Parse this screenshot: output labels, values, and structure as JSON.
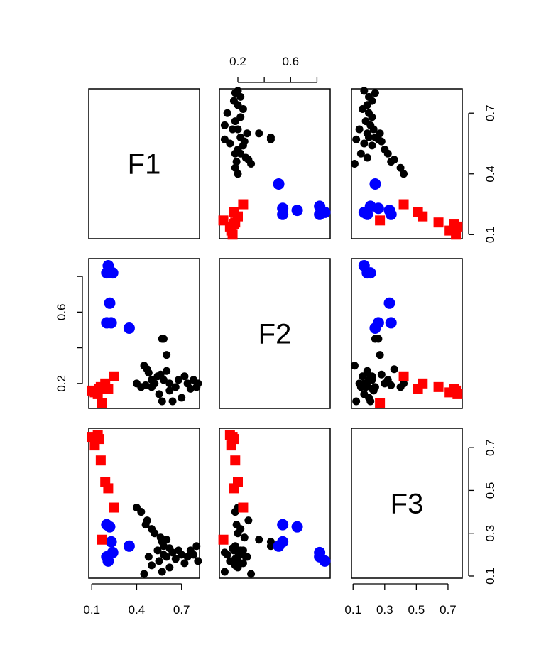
{
  "chart_data": {
    "type": "scatter",
    "title": "",
    "variables": [
      "F1",
      "F2",
      "F3"
    ],
    "axes": {
      "F1": {
        "range": [
          0.08,
          0.82
        ],
        "ticks": [
          0.1,
          0.4,
          0.7
        ],
        "tick_labels": [
          "0.1",
          "0.4",
          "0.7"
        ]
      },
      "F2": {
        "range": [
          0.06,
          0.9
        ],
        "ticks": [
          0.2,
          0.4,
          0.6,
          0.8
        ],
        "tick_labels": [
          "0.2",
          "",
          "0.6",
          ""
        ]
      },
      "F3": {
        "range": [
          0.09,
          0.79
        ],
        "ticks": [
          0.1,
          0.3,
          0.5,
          0.7
        ],
        "tick_labels": [
          "0.1",
          "0.3",
          "0.5",
          "0.7"
        ]
      }
    },
    "series": [
      {
        "color": "#000000",
        "marker": "circle-small",
        "points": [
          [
            0.4,
            0.2,
            0.42
          ],
          [
            0.43,
            0.18,
            0.4
          ],
          [
            0.47,
            0.28,
            0.36
          ],
          [
            0.46,
            0.19,
            0.34
          ],
          [
            0.5,
            0.22,
            0.32
          ],
          [
            0.52,
            0.2,
            0.3
          ],
          [
            0.56,
            0.25,
            0.28
          ],
          [
            0.57,
            0.45,
            0.26
          ],
          [
            0.58,
            0.45,
            0.24
          ],
          [
            0.6,
            0.36,
            0.27
          ],
          [
            0.54,
            0.24,
            0.22
          ],
          [
            0.58,
            0.22,
            0.2
          ],
          [
            0.6,
            0.27,
            0.19
          ],
          [
            0.62,
            0.16,
            0.23
          ],
          [
            0.64,
            0.1,
            0.21
          ],
          [
            0.66,
            0.18,
            0.18
          ],
          [
            0.68,
            0.22,
            0.22
          ],
          [
            0.7,
            0.12,
            0.2
          ],
          [
            0.72,
            0.24,
            0.16
          ],
          [
            0.74,
            0.2,
            0.19
          ],
          [
            0.76,
            0.17,
            0.22
          ],
          [
            0.78,
            0.22,
            0.2
          ],
          [
            0.8,
            0.18,
            0.24
          ],
          [
            0.81,
            0.2,
            0.17
          ],
          [
            0.55,
            0.14,
            0.17
          ],
          [
            0.57,
            0.1,
            0.12
          ],
          [
            0.48,
            0.26,
            0.19
          ],
          [
            0.5,
            0.18,
            0.15
          ],
          [
            0.62,
            0.2,
            0.14
          ],
          [
            0.45,
            0.3,
            0.11
          ]
        ]
      },
      {
        "color": "#0000ff",
        "marker": "circle-large",
        "points": [
          [
            0.2,
            0.82,
            0.19
          ],
          [
            0.21,
            0.86,
            0.17
          ],
          [
            0.24,
            0.82,
            0.21
          ],
          [
            0.22,
            0.65,
            0.33
          ],
          [
            0.2,
            0.54,
            0.34
          ],
          [
            0.35,
            0.51,
            0.24
          ],
          [
            0.23,
            0.54,
            0.26
          ]
        ]
      },
      {
        "color": "#ff0000",
        "marker": "square",
        "points": [
          [
            0.12,
            0.15,
            0.71
          ],
          [
            0.14,
            0.14,
            0.76
          ],
          [
            0.15,
            0.17,
            0.74
          ],
          [
            0.16,
            0.18,
            0.64
          ],
          [
            0.19,
            0.2,
            0.54
          ],
          [
            0.21,
            0.17,
            0.51
          ],
          [
            0.25,
            0.24,
            0.42
          ],
          [
            0.17,
            0.09,
            0.27
          ],
          [
            0.1,
            0.16,
            0.75
          ]
        ]
      }
    ]
  }
}
